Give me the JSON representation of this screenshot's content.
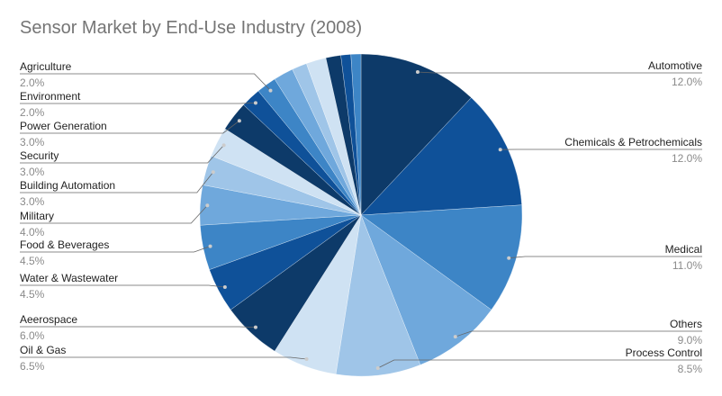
{
  "chart_data": {
    "type": "pie",
    "title": "Sensor Market by End-Use Industry (2008)",
    "slices": [
      {
        "label": "Automotive",
        "value": 12.0,
        "display": "12.0%",
        "color": "#0d3a69"
      },
      {
        "label": "Chemicals & Petrochemicals",
        "value": 12.0,
        "display": "12.0%",
        "color": "#0f5199"
      },
      {
        "label": "Medical",
        "value": 11.0,
        "display": "11.0%",
        "color": "#3d85c6"
      },
      {
        "label": "Others",
        "value": 9.0,
        "display": "9.0%",
        "color": "#6fa8dc"
      },
      {
        "label": "Process Control",
        "value": 8.5,
        "display": "8.5%",
        "color": "#9fc5e8"
      },
      {
        "label": "Oil & Gas",
        "value": 6.5,
        "display": "6.5%",
        "color": "#cfe2f3"
      },
      {
        "label": "Aeerospace",
        "value": 6.0,
        "display": "6.0%",
        "color": "#0d3a69"
      },
      {
        "label": "Water & Wastewater",
        "value": 4.5,
        "display": "4.5%",
        "color": "#0f5199"
      },
      {
        "label": "Food & Beverages",
        "value": 4.5,
        "display": "4.5%",
        "color": "#3d85c6"
      },
      {
        "label": "Military",
        "value": 4.0,
        "display": "4.0%",
        "color": "#6fa8dc"
      },
      {
        "label": "Building Automation",
        "value": 3.0,
        "display": "3.0%",
        "color": "#9fc5e8"
      },
      {
        "label": "Security",
        "value": 3.0,
        "display": "3.0%",
        "color": "#cfe2f3"
      },
      {
        "label": "Power Generation",
        "value": 3.0,
        "display": "3.0%",
        "color": "#0d3a69"
      },
      {
        "label": "Environment",
        "value": 2.0,
        "display": "2.0%",
        "color": "#0f5199"
      },
      {
        "label": "Agriculture",
        "value": 2.0,
        "display": "2.0%",
        "color": "#3d85c6"
      },
      {
        "label": null,
        "value": 2.0,
        "display": null,
        "color": "#6fa8dc"
      },
      {
        "label": null,
        "value": 1.5,
        "display": null,
        "color": "#9fc5e8"
      },
      {
        "label": null,
        "value": 2.0,
        "display": null,
        "color": "#cfe2f3"
      },
      {
        "label": null,
        "value": 1.5,
        "display": null,
        "color": "#0d3a69"
      },
      {
        "label": null,
        "value": 1.0,
        "display": null,
        "color": "#0f5199"
      },
      {
        "label": null,
        "value": 1.0,
        "display": null,
        "color": "#3d85c6"
      }
    ],
    "legend": "labels-outside"
  }
}
